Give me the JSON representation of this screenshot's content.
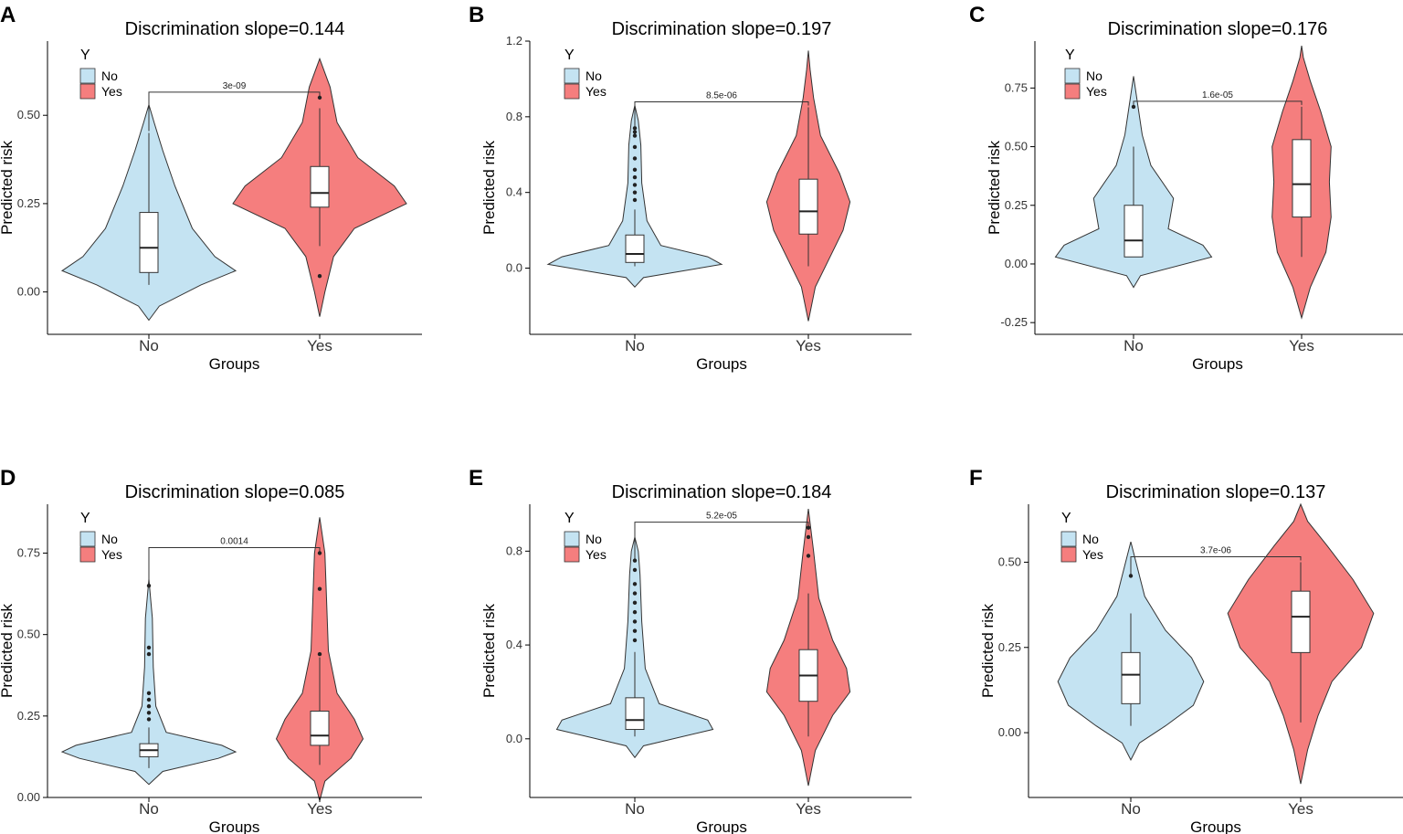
{
  "figure": {
    "colors": {
      "no": "#c4e3f2",
      "yes": "#f57e7e",
      "axis": "#000000",
      "text": "#333333"
    },
    "legend": {
      "title": "Y",
      "items": [
        "No",
        "Yes"
      ]
    },
    "xlabel": "Groups",
    "ylabel": "Predicted risk"
  },
  "chart_data": [
    {
      "panel": "A",
      "type": "violin",
      "title": "Discrimination slope=0.144",
      "categories": [
        "No",
        "Yes"
      ],
      "xlabel": "Groups",
      "ylabel": "Predicted risk",
      "ylim": [
        -0.12,
        0.71
      ],
      "yticks": [
        0,
        0.25,
        0.5
      ],
      "ytick_labels": [
        "0.00",
        "0.25",
        "0.50"
      ],
      "p_value": "3e-09",
      "groups": [
        {
          "name": "No",
          "box": {
            "whisker_low": 0.02,
            "q1": 0.055,
            "median": 0.125,
            "q3": 0.225,
            "whisker_high": 0.45
          },
          "outliers": [],
          "violin": [
            [
              -0.08,
              0
            ],
            [
              -0.04,
              0.06
            ],
            [
              0.02,
              0.3
            ],
            [
              0.06,
              0.5
            ],
            [
              0.1,
              0.38
            ],
            [
              0.18,
              0.25
            ],
            [
              0.3,
              0.15
            ],
            [
              0.4,
              0.08
            ],
            [
              0.48,
              0.03
            ],
            [
              0.53,
              0
            ]
          ]
        },
        {
          "name": "Yes",
          "box": {
            "whisker_low": 0.13,
            "q1": 0.24,
            "median": 0.28,
            "q3": 0.355,
            "whisker_high": 0.52
          },
          "outliers": [
            0.045,
            0.55
          ],
          "violin": [
            [
              -0.07,
              0
            ],
            [
              0.0,
              0.03
            ],
            [
              0.1,
              0.08
            ],
            [
              0.18,
              0.2
            ],
            [
              0.25,
              0.5
            ],
            [
              0.3,
              0.43
            ],
            [
              0.38,
              0.22
            ],
            [
              0.48,
              0.1
            ],
            [
              0.58,
              0.06
            ],
            [
              0.66,
              0
            ]
          ]
        }
      ]
    },
    {
      "panel": "B",
      "type": "violin",
      "title": "Discrimination slope=0.197",
      "categories": [
        "No",
        "Yes"
      ],
      "xlabel": "Groups",
      "ylabel": "Predicted risk",
      "ylim": [
        -0.35,
        1.2
      ],
      "yticks": [
        0,
        0.4,
        0.8,
        1.2
      ],
      "ytick_labels": [
        "0.0",
        "0.4",
        "0.8",
        "1.2"
      ],
      "p_value": "8.5e-06",
      "groups": [
        {
          "name": "No",
          "box": {
            "whisker_low": 0.01,
            "q1": 0.03,
            "median": 0.075,
            "q3": 0.175,
            "whisker_high": 0.31
          },
          "outliers": [
            0.36,
            0.4,
            0.44,
            0.48,
            0.52,
            0.58,
            0.64,
            0.7,
            0.72,
            0.74
          ],
          "violin": [
            [
              -0.1,
              0
            ],
            [
              -0.05,
              0.05
            ],
            [
              0.02,
              0.5
            ],
            [
              0.06,
              0.42
            ],
            [
              0.12,
              0.15
            ],
            [
              0.25,
              0.07
            ],
            [
              0.45,
              0.04
            ],
            [
              0.65,
              0.035
            ],
            [
              0.78,
              0.02
            ],
            [
              0.86,
              0
            ]
          ]
        },
        {
          "name": "Yes",
          "box": {
            "whisker_low": 0.01,
            "q1": 0.18,
            "median": 0.3,
            "q3": 0.47,
            "whisker_high": 0.85
          },
          "outliers": [],
          "violin": [
            [
              -0.28,
              0
            ],
            [
              -0.1,
              0.04
            ],
            [
              0.05,
              0.12
            ],
            [
              0.2,
              0.2
            ],
            [
              0.35,
              0.24
            ],
            [
              0.5,
              0.18
            ],
            [
              0.7,
              0.07
            ],
            [
              0.9,
              0.03
            ],
            [
              1.05,
              0.01
            ],
            [
              1.15,
              0
            ]
          ]
        }
      ]
    },
    {
      "panel": "C",
      "type": "violin",
      "title": "Discrimination slope=0.176",
      "categories": [
        "No",
        "Yes"
      ],
      "xlabel": "Groups",
      "ylabel": "Predicted risk",
      "ylim": [
        -0.3,
        0.95
      ],
      "yticks": [
        -0.25,
        0,
        0.25,
        0.5,
        0.75
      ],
      "ytick_labels": [
        "-0.25",
        "0.00",
        "0.25",
        "0.50",
        "0.75"
      ],
      "p_value": "1.6e-05",
      "groups": [
        {
          "name": "No",
          "box": {
            "whisker_low": 0.03,
            "q1": 0.03,
            "median": 0.1,
            "q3": 0.25,
            "whisker_high": 0.5
          },
          "outliers": [
            0.67
          ],
          "violin": [
            [
              -0.1,
              0
            ],
            [
              -0.05,
              0.04
            ],
            [
              0.03,
              0.45
            ],
            [
              0.08,
              0.4
            ],
            [
              0.15,
              0.2
            ],
            [
              0.28,
              0.23
            ],
            [
              0.42,
              0.1
            ],
            [
              0.55,
              0.05
            ],
            [
              0.7,
              0.02
            ],
            [
              0.8,
              0
            ]
          ]
        },
        {
          "name": "Yes",
          "box": {
            "whisker_low": 0.03,
            "q1": 0.2,
            "median": 0.34,
            "q3": 0.53,
            "whisker_high": 0.67
          },
          "outliers": [],
          "violin": [
            [
              -0.23,
              0
            ],
            [
              -0.1,
              0.05
            ],
            [
              0.05,
              0.14
            ],
            [
              0.2,
              0.17
            ],
            [
              0.35,
              0.16
            ],
            [
              0.5,
              0.17
            ],
            [
              0.65,
              0.11
            ],
            [
              0.78,
              0.05
            ],
            [
              0.88,
              0.01
            ],
            [
              0.93,
              0
            ]
          ]
        }
      ]
    },
    {
      "panel": "D",
      "type": "violin",
      "title": "Discrimination slope=0.085",
      "categories": [
        "No",
        "Yes"
      ],
      "xlabel": "Groups",
      "ylabel": "Predicted risk",
      "ylim": [
        0,
        0.9
      ],
      "yticks": [
        0,
        0.25,
        0.5,
        0.75
      ],
      "ytick_labels": [
        "0.00",
        "0.25",
        "0.50",
        "0.75"
      ],
      "p_value": "0.0014",
      "groups": [
        {
          "name": "No",
          "box": {
            "whisker_low": 0.09,
            "q1": 0.125,
            "median": 0.145,
            "q3": 0.165,
            "whisker_high": 0.215
          },
          "outliers": [
            0.24,
            0.26,
            0.28,
            0.3,
            0.32,
            0.44,
            0.46,
            0.65
          ],
          "violin": [
            [
              0.04,
              0
            ],
            [
              0.08,
              0.08
            ],
            [
              0.12,
              0.4
            ],
            [
              0.14,
              0.5
            ],
            [
              0.16,
              0.42
            ],
            [
              0.2,
              0.1
            ],
            [
              0.28,
              0.04
            ],
            [
              0.4,
              0.025
            ],
            [
              0.55,
              0.02
            ],
            [
              0.67,
              0
            ]
          ]
        },
        {
          "name": "Yes",
          "box": {
            "whisker_low": 0.1,
            "q1": 0.16,
            "median": 0.19,
            "q3": 0.265,
            "whisker_high": 0.43
          },
          "outliers": [
            0.44,
            0.64,
            0.75
          ],
          "violin": [
            [
              -0.01,
              0
            ],
            [
              0.05,
              0.03
            ],
            [
              0.12,
              0.18
            ],
            [
              0.18,
              0.25
            ],
            [
              0.24,
              0.2
            ],
            [
              0.32,
              0.1
            ],
            [
              0.45,
              0.05
            ],
            [
              0.6,
              0.04
            ],
            [
              0.75,
              0.03
            ],
            [
              0.86,
              0
            ]
          ]
        }
      ]
    },
    {
      "panel": "E",
      "type": "violin",
      "title": "Discrimination slope=0.184",
      "categories": [
        "No",
        "Yes"
      ],
      "xlabel": "Groups",
      "ylabel": "Predicted risk",
      "ylim": [
        -0.25,
        1.0
      ],
      "yticks": [
        0,
        0.4,
        0.8
      ],
      "ytick_labels": [
        "0.0",
        "0.4",
        "0.8"
      ],
      "p_value": "5.2e-05",
      "groups": [
        {
          "name": "No",
          "box": {
            "whisker_low": 0.01,
            "q1": 0.04,
            "median": 0.08,
            "q3": 0.175,
            "whisker_high": 0.37
          },
          "outliers": [
            0.42,
            0.46,
            0.5,
            0.54,
            0.58,
            0.62,
            0.66,
            0.72,
            0.76
          ],
          "violin": [
            [
              -0.08,
              0
            ],
            [
              -0.03,
              0.05
            ],
            [
              0.04,
              0.45
            ],
            [
              0.08,
              0.42
            ],
            [
              0.15,
              0.14
            ],
            [
              0.3,
              0.06
            ],
            [
              0.5,
              0.04
            ],
            [
              0.7,
              0.03
            ],
            [
              0.8,
              0.02
            ],
            [
              0.86,
              0
            ]
          ]
        },
        {
          "name": "Yes",
          "box": {
            "whisker_low": 0.01,
            "q1": 0.16,
            "median": 0.27,
            "q3": 0.38,
            "whisker_high": 0.62
          },
          "outliers": [
            0.78,
            0.86,
            0.9
          ],
          "violin": [
            [
              -0.2,
              0
            ],
            [
              -0.05,
              0.04
            ],
            [
              0.1,
              0.14
            ],
            [
              0.2,
              0.24
            ],
            [
              0.3,
              0.22
            ],
            [
              0.42,
              0.14
            ],
            [
              0.6,
              0.06
            ],
            [
              0.8,
              0.03
            ],
            [
              0.92,
              0.01
            ],
            [
              0.98,
              0
            ]
          ]
        }
      ]
    },
    {
      "panel": "F",
      "type": "violin",
      "title": "Discrimination slope=0.137",
      "categories": [
        "No",
        "Yes"
      ],
      "xlabel": "Groups",
      "ylabel": "Predicted risk",
      "ylim": [
        -0.19,
        0.67
      ],
      "yticks": [
        0,
        0.25,
        0.5
      ],
      "ytick_labels": [
        "0.00",
        "0.25",
        "0.50"
      ],
      "p_value": "3.7e-06",
      "groups": [
        {
          "name": "No",
          "box": {
            "whisker_low": 0.02,
            "q1": 0.085,
            "median": 0.17,
            "q3": 0.235,
            "whisker_high": 0.35
          },
          "outliers": [
            0.46
          ],
          "violin": [
            [
              -0.08,
              0
            ],
            [
              -0.03,
              0.05
            ],
            [
              0.02,
              0.2
            ],
            [
              0.08,
              0.36
            ],
            [
              0.15,
              0.42
            ],
            [
              0.22,
              0.35
            ],
            [
              0.3,
              0.2
            ],
            [
              0.4,
              0.08
            ],
            [
              0.5,
              0.03
            ],
            [
              0.56,
              0
            ]
          ]
        },
        {
          "name": "Yes",
          "box": {
            "whisker_low": 0.03,
            "q1": 0.235,
            "median": 0.34,
            "q3": 0.415,
            "whisker_high": 0.5
          },
          "outliers": [],
          "violin": [
            [
              -0.15,
              0
            ],
            [
              -0.05,
              0.04
            ],
            [
              0.05,
              0.1
            ],
            [
              0.15,
              0.18
            ],
            [
              0.25,
              0.35
            ],
            [
              0.35,
              0.42
            ],
            [
              0.45,
              0.3
            ],
            [
              0.55,
              0.15
            ],
            [
              0.62,
              0.04
            ],
            [
              0.67,
              0
            ]
          ]
        }
      ]
    }
  ]
}
